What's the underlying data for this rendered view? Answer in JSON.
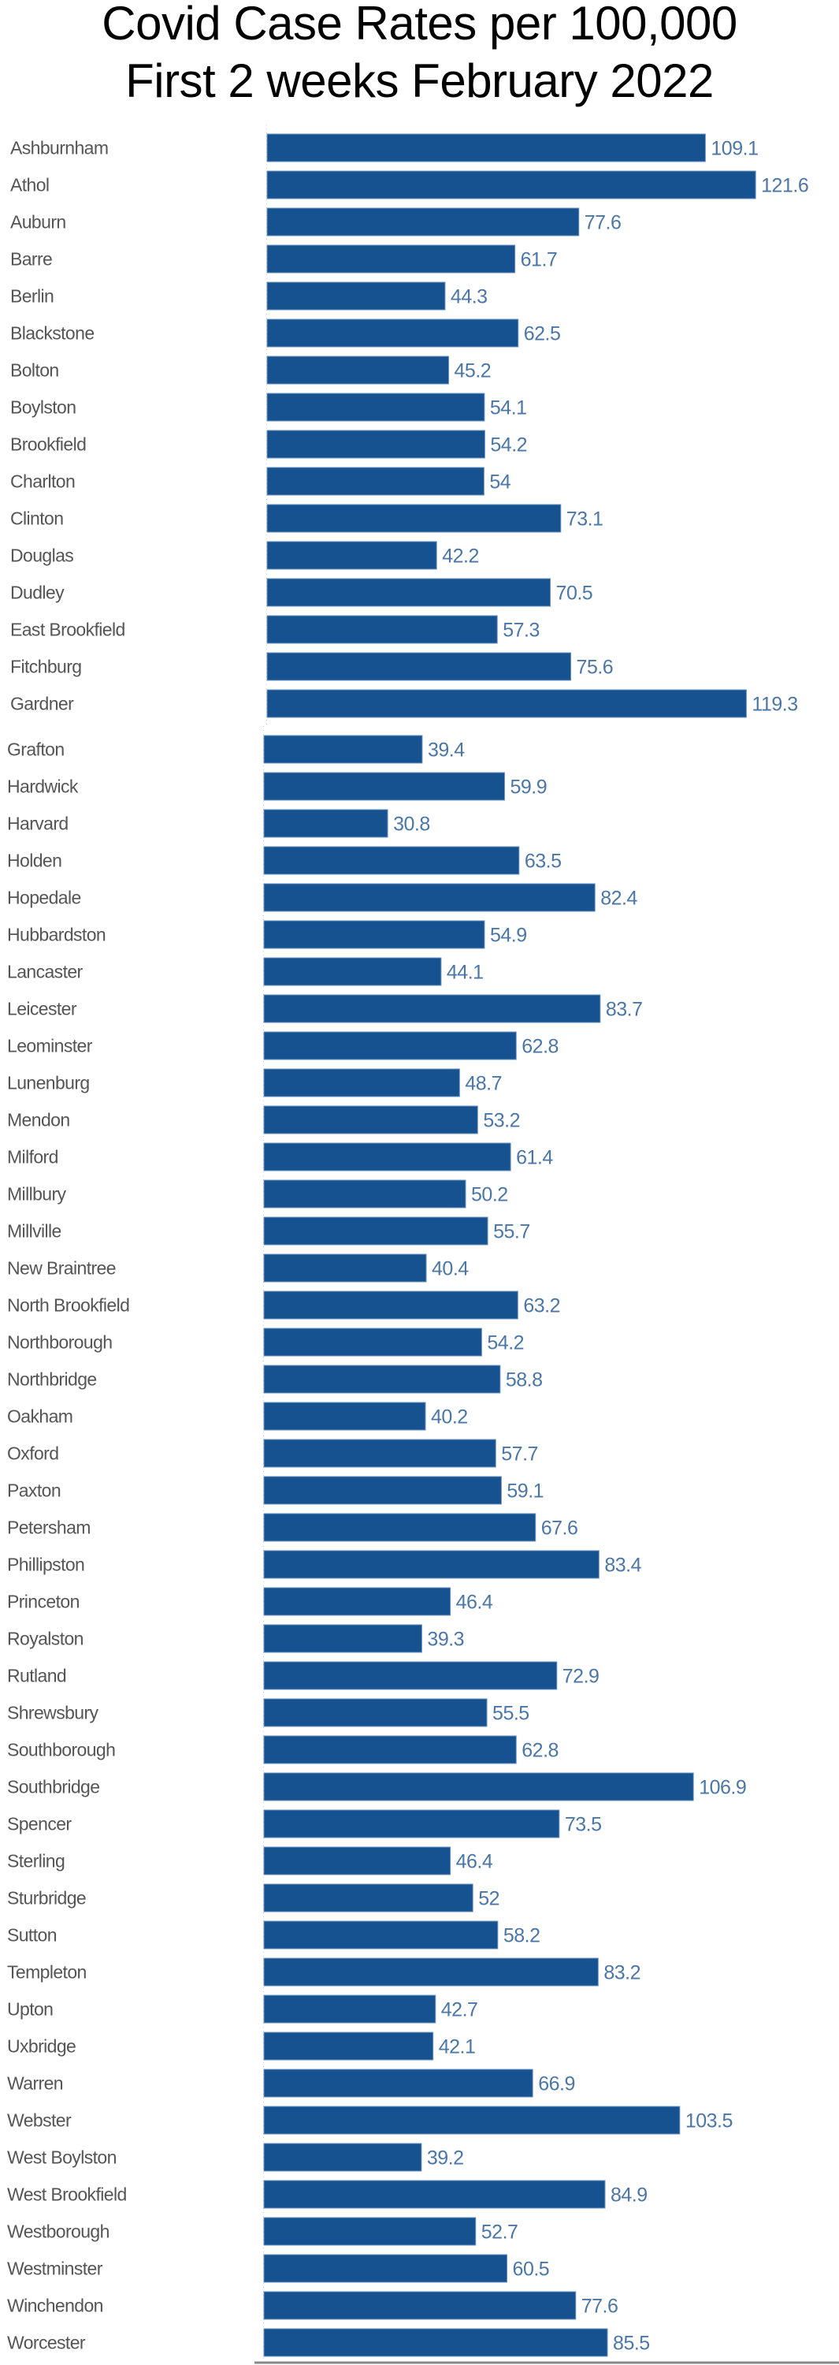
{
  "title": {
    "line1": "Covid Case Rates per 100,000",
    "line2": "First 2 weeks February 2022"
  },
  "colors": {
    "bar": "#165290",
    "value_label": "#4a76a8",
    "category_label": "#555555",
    "axis": "#888888"
  },
  "chart_data": {
    "type": "bar",
    "orientation": "horizontal",
    "title": "Covid Case Rates per 100,000 First 2 weeks February 2022",
    "xlabel": "",
    "ylabel": "",
    "xlim": [
      0,
      125
    ],
    "grid": false,
    "legend": "none",
    "data_labels": true,
    "panels": [
      {
        "categories": [
          "Ashburnham",
          "Athol",
          "Auburn",
          "Barre",
          "Berlin",
          "Blackstone",
          "Bolton",
          "Boylston",
          "Brookfield",
          "Charlton",
          "Clinton",
          "Douglas",
          "Dudley",
          "East Brookfield",
          "Fitchburg",
          "Gardner"
        ],
        "values": [
          109.1,
          121.6,
          77.6,
          61.7,
          44.3,
          62.5,
          45.2,
          54.1,
          54.2,
          54,
          73.1,
          42.2,
          70.5,
          57.3,
          75.6,
          119.3
        ],
        "value_labels": [
          "109.1",
          "121.6",
          "77.6",
          "61.7",
          "44.3",
          "62.5",
          "45.2",
          "54.1",
          "54.2",
          "54",
          "73.1",
          "42.2",
          "70.5",
          "57.3",
          "75.6",
          "119.3"
        ]
      },
      {
        "categories": [
          "Grafton",
          "Hardwick",
          "Harvard",
          "Holden",
          "Hopedale",
          "Hubbardston",
          "Lancaster",
          "Leicester",
          "Leominster",
          "Lunenburg",
          "Mendon",
          "Milford",
          "Millbury",
          "Millville",
          "New Braintree",
          "North Brookfield",
          "Northborough",
          "Northbridge",
          "Oakham",
          "Oxford",
          "Paxton",
          "Petersham",
          "Phillipston",
          "Princeton",
          "Royalston",
          "Rutland",
          "Shrewsbury",
          "Southborough",
          "Southbridge",
          "Spencer",
          "Sterling",
          "Sturbridge",
          "Sutton",
          "Templeton",
          "Upton",
          "Uxbridge",
          "Warren",
          "Webster",
          "West Boylston",
          "West Brookfield",
          "Westborough",
          "Westminster",
          "Winchendon",
          "Worcester"
        ],
        "values": [
          39.4,
          59.9,
          30.8,
          63.5,
          82.4,
          54.9,
          44.1,
          83.7,
          62.8,
          48.7,
          53.2,
          61.4,
          50.2,
          55.7,
          40.4,
          63.2,
          54.2,
          58.8,
          40.2,
          57.7,
          59.1,
          67.6,
          83.4,
          46.4,
          39.3,
          72.9,
          55.5,
          62.8,
          106.9,
          73.5,
          46.4,
          52,
          58.2,
          83.2,
          42.7,
          42.1,
          66.9,
          103.5,
          39.2,
          84.9,
          52.7,
          60.5,
          77.6,
          85.5
        ],
        "value_labels": [
          "39.4",
          "59.9",
          "30.8",
          "63.5",
          "82.4",
          "54.9",
          "44.1",
          "83.7",
          "62.8",
          "48.7",
          "53.2",
          "61.4",
          "50.2",
          "55.7",
          "40.4",
          "63.2",
          "54.2",
          "58.8",
          "40.2",
          "57.7",
          "59.1",
          "67.6",
          "83.4",
          "46.4",
          "39.3",
          "72.9",
          "55.5",
          "62.8",
          "106.9",
          "73.5",
          "46.4",
          "52",
          "58.2",
          "83.2",
          "42.7",
          "42.1",
          "66.9",
          "103.5",
          "39.2",
          "84.9",
          "52.7",
          "60.5",
          "77.6",
          "85.5"
        ]
      }
    ]
  }
}
